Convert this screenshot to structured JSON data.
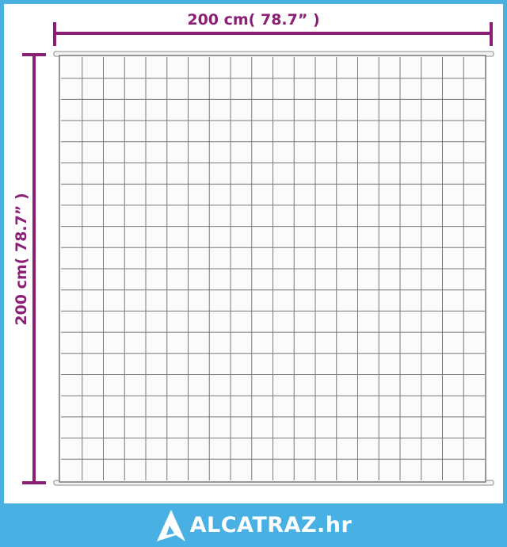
{
  "dimensions": {
    "width_label": "200 cm( 78.7” )",
    "height_label": "200 cm( 78.7” )"
  },
  "blanket": {
    "columns": 20,
    "rows": 20
  },
  "brand": {
    "logo_text": "ALCATRAZ.hr",
    "logo_icon": "triangle-a-logo-icon"
  },
  "colors": {
    "dimension": "#8a1f74",
    "banner": "#48b0e2",
    "grid": "#7a7a7a"
  }
}
